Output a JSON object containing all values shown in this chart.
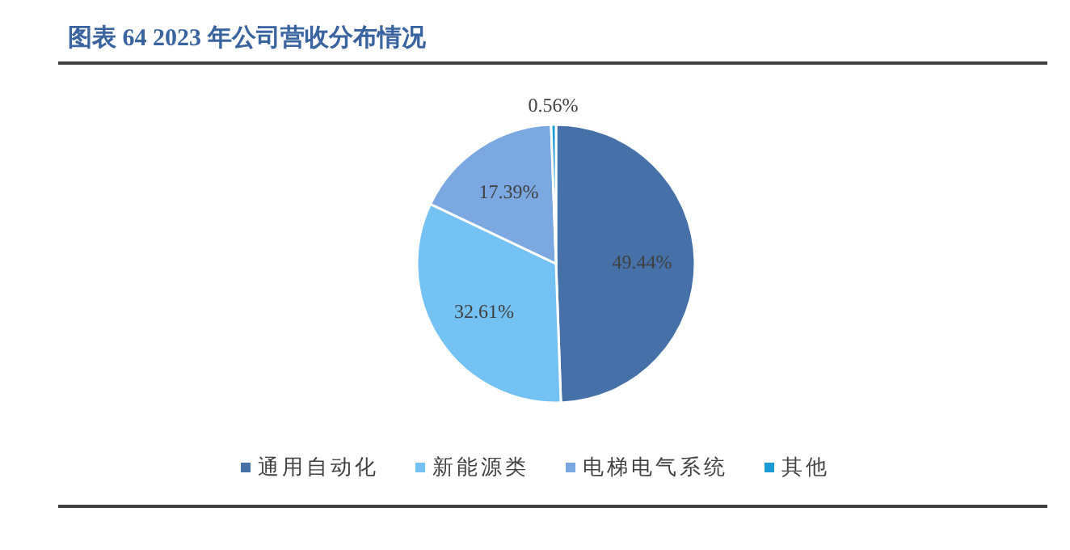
{
  "chart_data": {
    "type": "pie",
    "title": "图表 64 2023 年公司营收分布情况",
    "categories": [
      "通用自动化",
      "新能源类",
      "电梯电气系统",
      "其他"
    ],
    "values": [
      49.44,
      32.61,
      17.39,
      0.56
    ],
    "value_labels": [
      "49.44%",
      "32.61%",
      "17.39%",
      "0.56%"
    ],
    "colors": [
      "#4571a8",
      "#74c2f3",
      "#7ba8e0",
      "#1b9ad8"
    ],
    "legend": "bottom"
  }
}
